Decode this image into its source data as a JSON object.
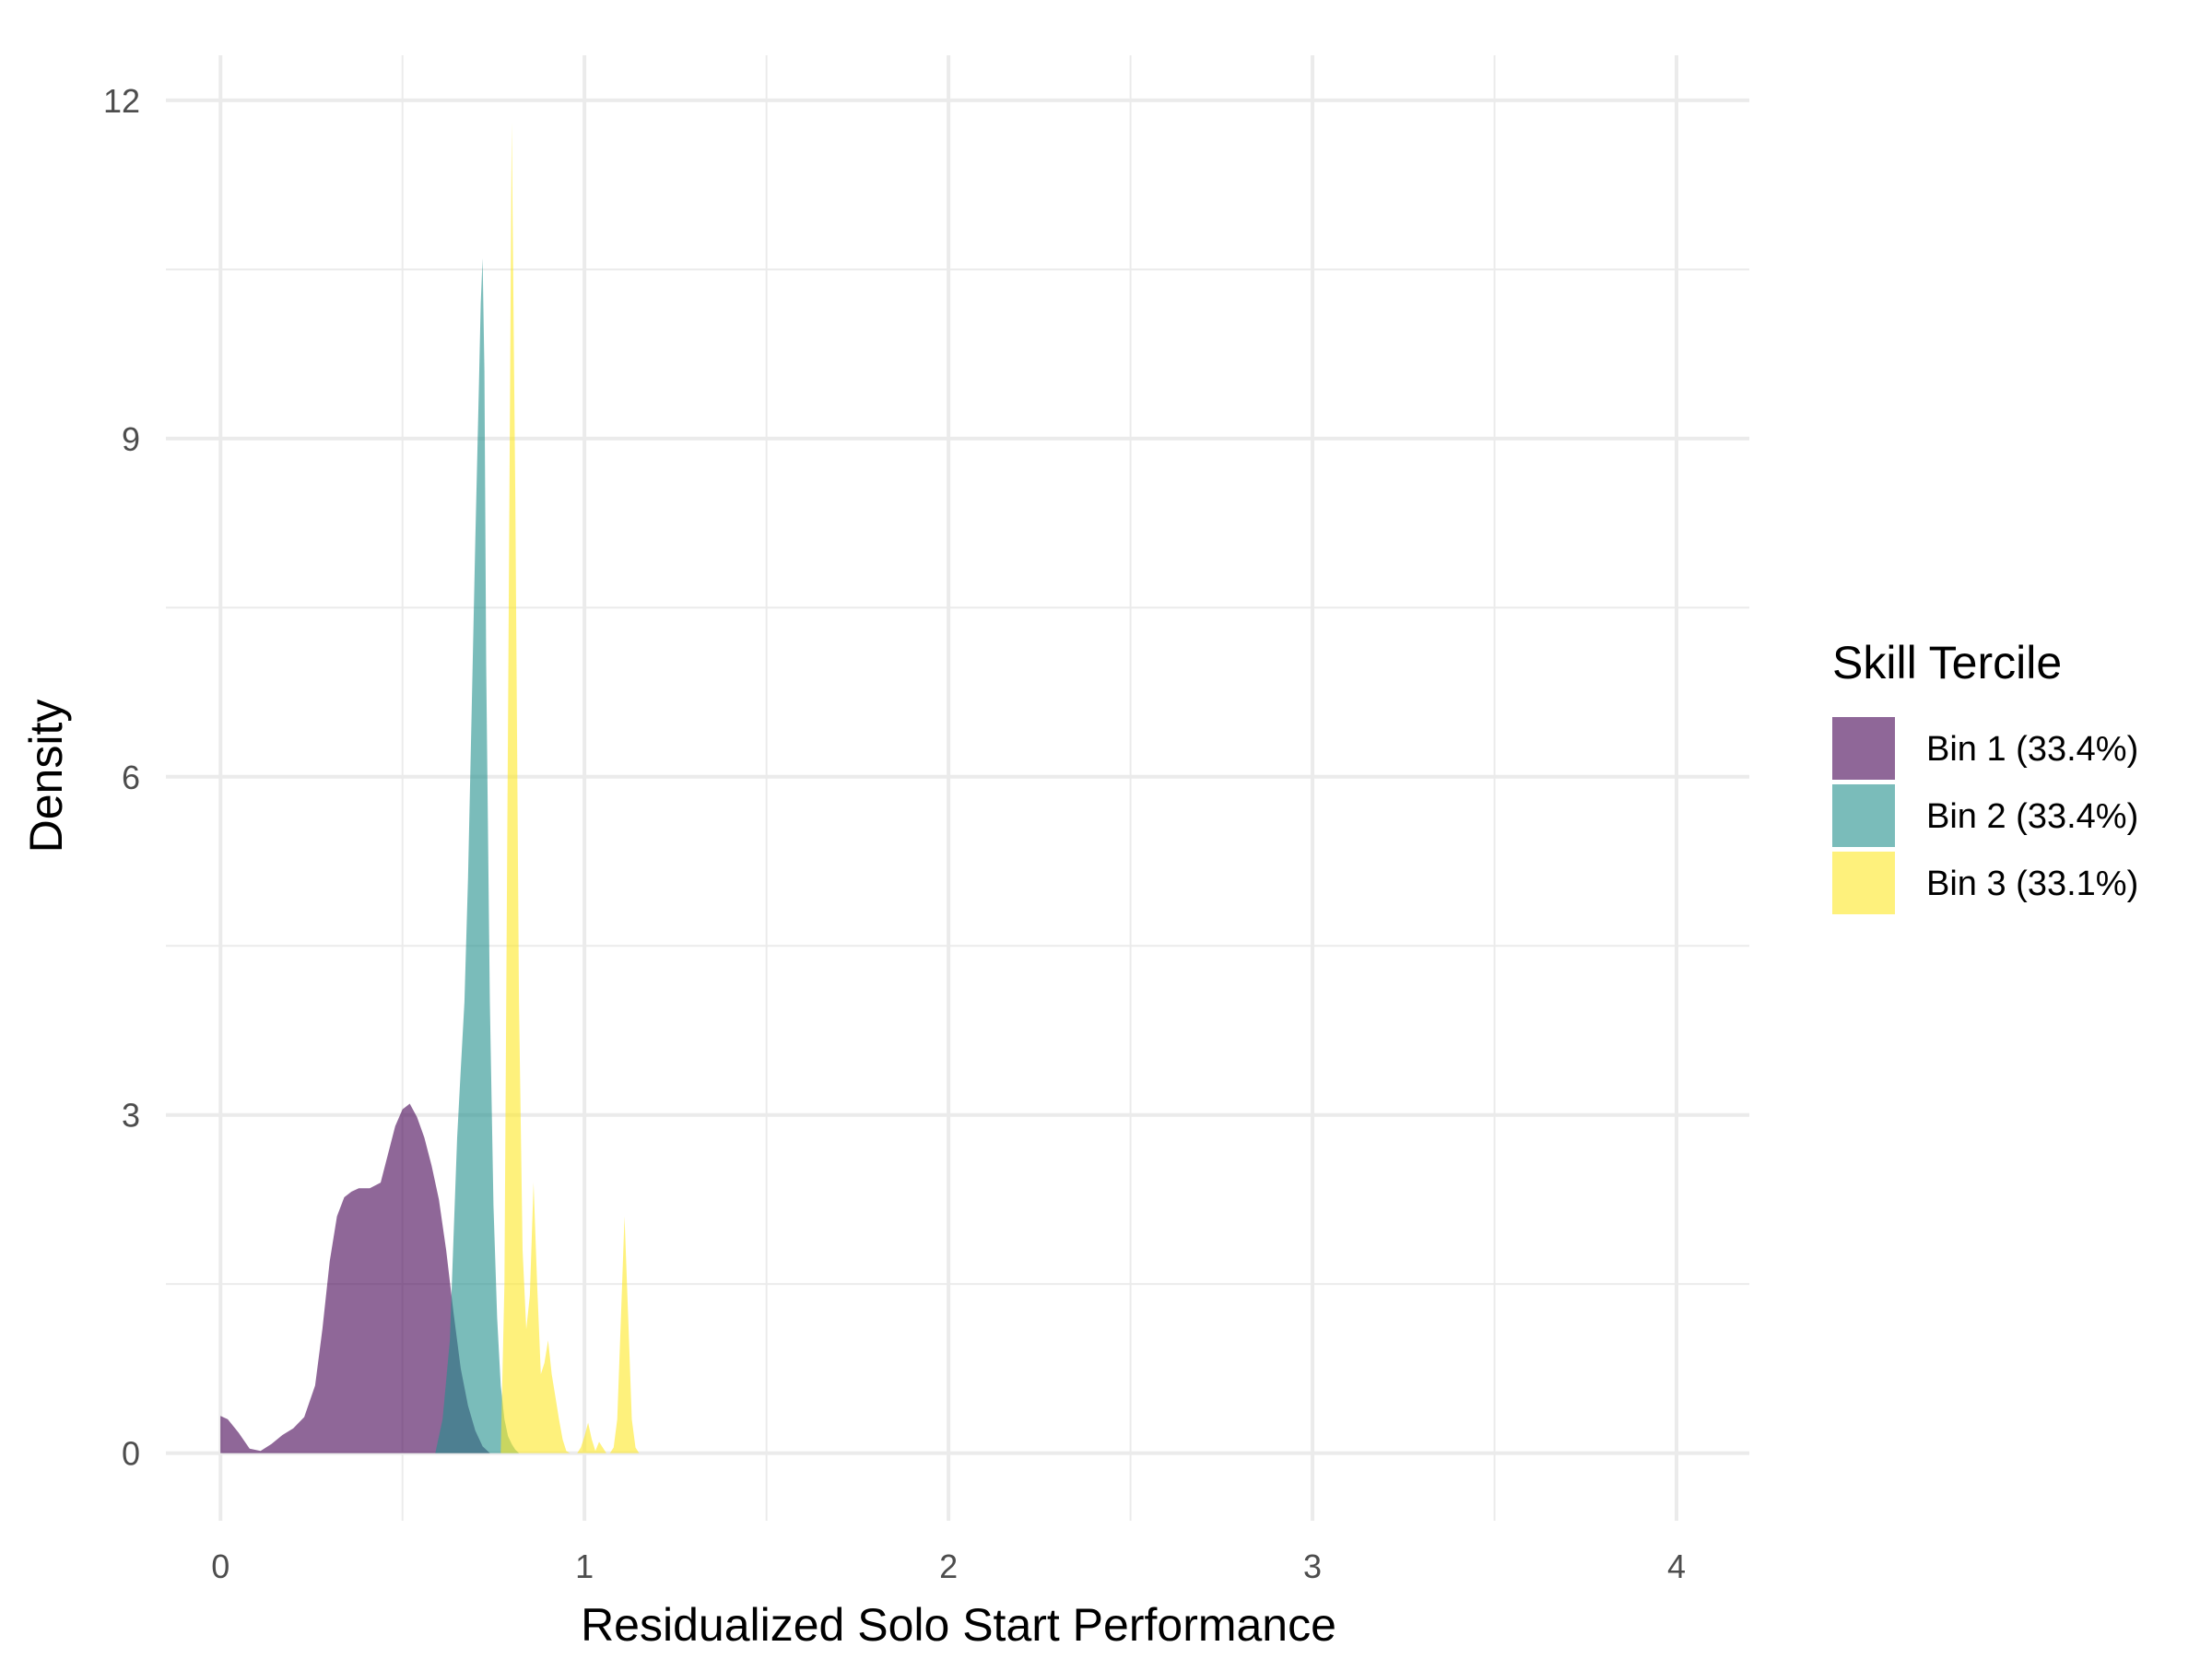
{
  "chart_data": {
    "type": "area",
    "title": "",
    "xlabel": "Residualized Solo Start Performance",
    "ylabel": "Density",
    "xlim": [
      -0.15,
      4.2
    ],
    "ylim": [
      -0.6,
      12.4
    ],
    "xticks": [
      0,
      1,
      2,
      3,
      4
    ],
    "xtick_labels": [
      "0",
      "1",
      "2",
      "3",
      "4"
    ],
    "yticks": [
      0,
      3,
      6,
      9,
      12
    ],
    "ytick_labels": [
      "0",
      "3",
      "6",
      "9",
      "12"
    ],
    "grid": true,
    "legend": {
      "title": "Skill Tercile",
      "position": "right",
      "entries": [
        "Bin 1 (33.4%)",
        "Bin 2 (33.4%)",
        "Bin 3 (33.1%)"
      ]
    },
    "series": [
      {
        "name": "Bin 1 (33.4%)",
        "color": "#440154",
        "opacity": 0.6,
        "x": [
          0.0,
          0.02,
          0.05,
          0.08,
          0.11,
          0.14,
          0.17,
          0.2,
          0.23,
          0.26,
          0.28,
          0.3,
          0.32,
          0.34,
          0.36,
          0.38,
          0.41,
          0.44,
          0.46,
          0.48,
          0.5,
          0.52,
          0.54,
          0.56,
          0.58,
          0.6,
          0.62,
          0.64,
          0.66,
          0.68,
          0.7,
          0.72,
          0.74
        ],
        "values": [
          0.33,
          0.3,
          0.18,
          0.04,
          0.02,
          0.08,
          0.16,
          0.22,
          0.32,
          0.6,
          1.1,
          1.7,
          2.1,
          2.27,
          2.32,
          2.35,
          2.35,
          2.4,
          2.65,
          2.9,
          3.05,
          3.1,
          2.98,
          2.8,
          2.55,
          2.25,
          1.8,
          1.25,
          0.75,
          0.42,
          0.2,
          0.06,
          0.0
        ]
      },
      {
        "name": "Bin 2 (33.4%)",
        "color": "#21908c",
        "opacity": 0.6,
        "x": [
          0.59,
          0.61,
          0.63,
          0.64,
          0.65,
          0.66,
          0.67,
          0.68,
          0.69,
          0.7,
          0.71,
          0.715,
          0.72,
          0.725,
          0.73,
          0.74,
          0.75,
          0.76,
          0.77,
          0.78,
          0.79,
          0.8,
          0.81,
          0.82
        ],
        "values": [
          0.0,
          0.3,
          1.0,
          1.9,
          2.8,
          3.4,
          4.0,
          5.1,
          6.6,
          8.1,
          9.5,
          10.2,
          10.6,
          9.6,
          7.0,
          4.0,
          2.2,
          1.2,
          0.6,
          0.3,
          0.15,
          0.08,
          0.03,
          0.0
        ]
      },
      {
        "name": "Bin 3 (33.1%)",
        "color": "#fde725",
        "opacity": 0.6,
        "x": [
          0.77,
          0.78,
          0.79,
          0.8,
          0.81,
          0.82,
          0.83,
          0.84,
          0.85,
          0.86,
          0.87,
          0.88,
          0.89,
          0.9,
          0.91,
          0.92,
          0.93,
          0.94,
          0.95,
          0.96,
          0.97,
          0.98,
          0.99,
          1.0,
          1.01,
          1.02,
          1.03,
          1.04,
          1.05,
          1.06,
          1.07,
          1.08,
          1.09,
          1.1,
          1.11,
          1.12,
          1.13,
          1.14,
          1.15,
          1.16,
          1.17
        ],
        "values": [
          0.0,
          1.5,
          6.5,
          11.8,
          8.5,
          4.0,
          1.8,
          1.1,
          1.4,
          2.4,
          1.5,
          0.7,
          0.8,
          1.0,
          0.7,
          0.5,
          0.3,
          0.12,
          0.02,
          0.0,
          0.0,
          0.0,
          0.05,
          0.15,
          0.27,
          0.12,
          0.02,
          0.1,
          0.05,
          0.0,
          0.0,
          0.05,
          0.3,
          1.2,
          2.1,
          1.2,
          0.3,
          0.05,
          0.0,
          0.0,
          0.0
        ]
      }
    ]
  }
}
